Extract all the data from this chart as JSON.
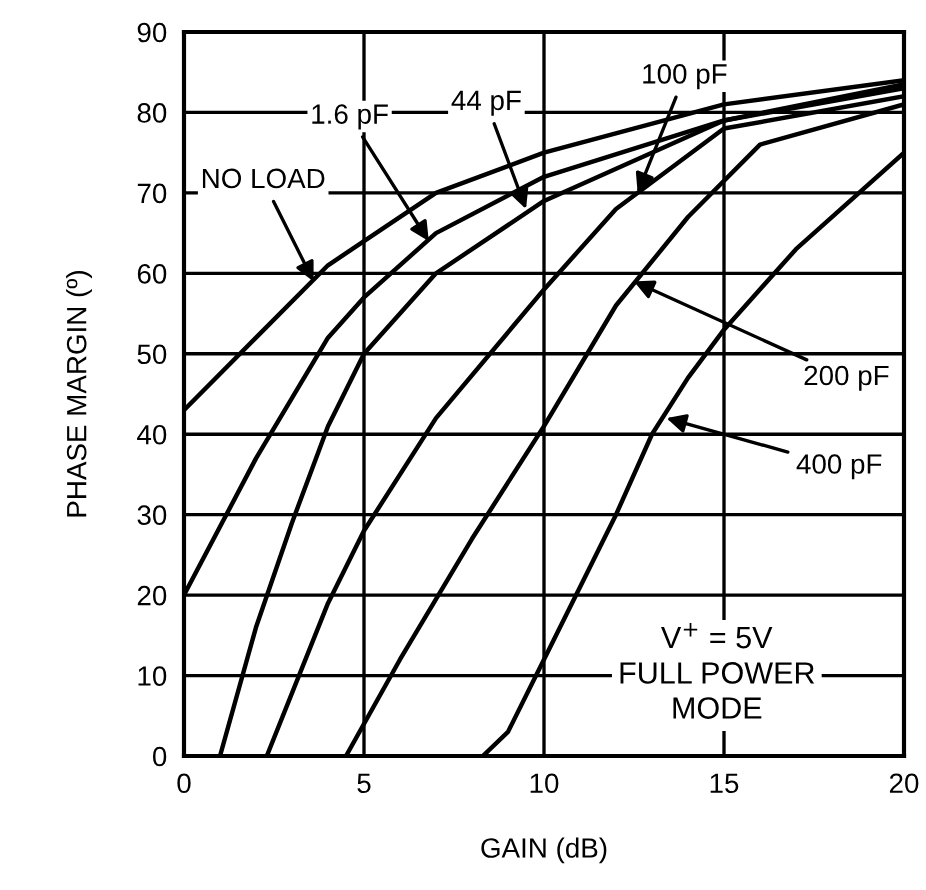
{
  "chart_data": {
    "type": "line",
    "xlabel": "GAIN (dB)",
    "ylabel": "PHASE MARGIN (º)",
    "xlim": [
      0,
      20
    ],
    "xticks": [
      0,
      5,
      10,
      15,
      20
    ],
    "ylim": [
      0,
      90
    ],
    "yticks": [
      0,
      10,
      20,
      30,
      40,
      50,
      60,
      70,
      80,
      90
    ],
    "grid": true,
    "marker": "none",
    "line_style": "solid",
    "series": [
      {
        "color": "#000000",
        "x": [
          0,
          2,
          4,
          5,
          7,
          10,
          15,
          20
        ],
        "values": [
          43,
          52,
          61,
          64,
          70,
          75,
          81,
          84
        ]
      },
      {
        "color": "#000000",
        "x": [
          0,
          2,
          4,
          5,
          7,
          10,
          15,
          20
        ],
        "values": [
          20,
          37,
          52,
          57,
          65,
          72,
          79,
          83.5
        ]
      },
      {
        "color": "#000000",
        "x": [
          1,
          2,
          3,
          4,
          5,
          7,
          10,
          15,
          20
        ],
        "values": [
          0,
          16,
          29,
          41,
          50,
          60,
          69,
          79,
          83
        ]
      },
      {
        "color": "#000000",
        "x": [
          2.3,
          4,
          5,
          7,
          10,
          12,
          15,
          20
        ],
        "values": [
          0,
          19,
          28,
          42,
          58,
          68,
          78,
          82
        ]
      },
      {
        "color": "#000000",
        "x": [
          4.5,
          6,
          8,
          10,
          12,
          14,
          16,
          20
        ],
        "values": [
          0,
          12,
          27,
          41,
          56,
          67,
          76,
          81
        ]
      },
      {
        "color": "#000000",
        "x": [
          8.3,
          9,
          10,
          12,
          13,
          14,
          15,
          17,
          20
        ],
        "values": [
          0,
          3,
          12,
          30,
          40,
          47,
          53,
          63,
          75
        ]
      }
    ],
    "annotations": [
      {
        "text": "NO LOAD",
        "x": 3.6,
        "y": 59
      },
      {
        "text": "1.6 pF",
        "x": 6.8,
        "y": 64
      },
      {
        "text": "44 pF",
        "x": 9.5,
        "y": 68
      },
      {
        "text": "100 pF",
        "x": 12.6,
        "y": 70
      },
      {
        "text": "200 pF",
        "x": 12.5,
        "y": 59
      },
      {
        "text": "400 pF",
        "x": 13.4,
        "y": 42
      },
      "V$^{+}$ = 5V\nFULL POWER\nMODE"
    ]
  }
}
